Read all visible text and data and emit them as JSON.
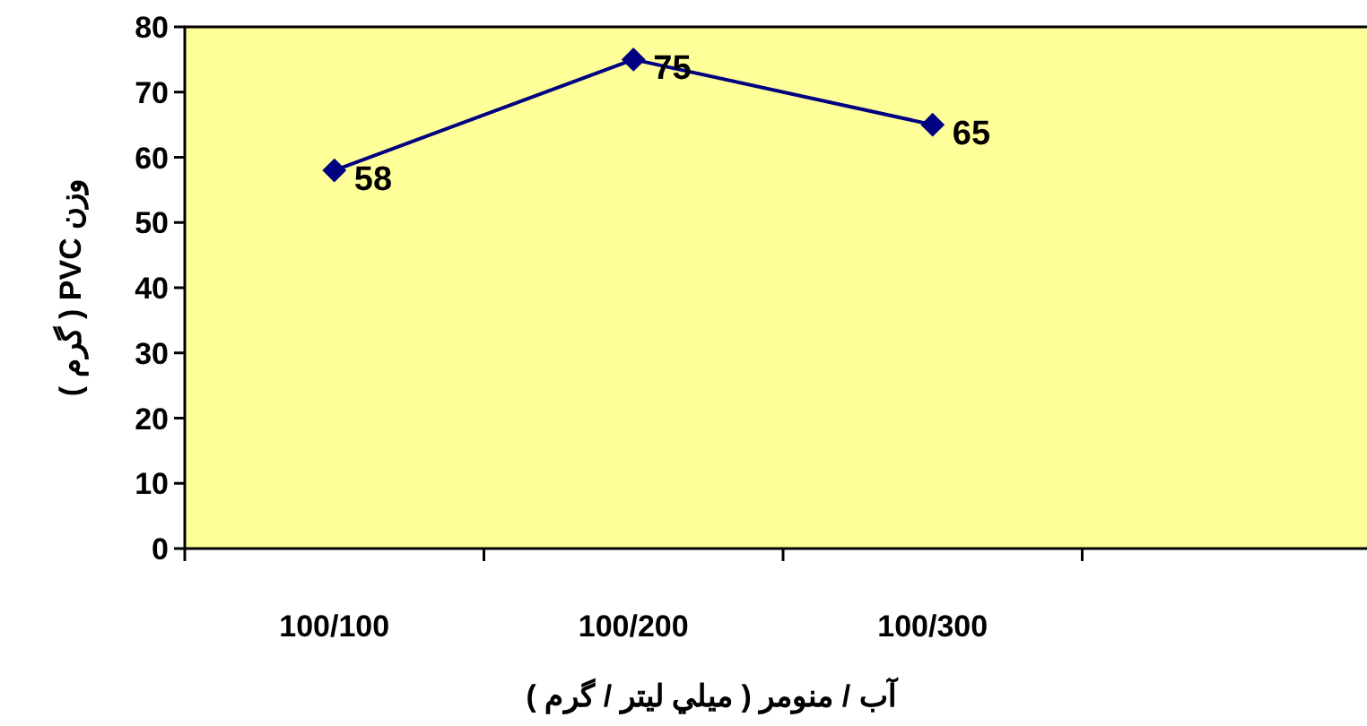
{
  "chart_data": {
    "type": "line",
    "xlabel": "آب / منومر ( ميلي ليتر / گرم )",
    "ylabel": "وزن PVC ( گرم )",
    "categories": [
      "100/100",
      "100/200",
      "100/300",
      null
    ],
    "series": [
      {
        "color": "#000080",
        "values": [
          58,
          75,
          65,
          null
        ]
      }
    ],
    "ylim": [
      0,
      80
    ],
    "yticks": [
      0,
      10,
      20,
      30,
      40,
      50,
      60,
      70,
      80
    ],
    "data_labels": true,
    "marker": "diamond",
    "line_style": "solid",
    "grid": false
  }
}
